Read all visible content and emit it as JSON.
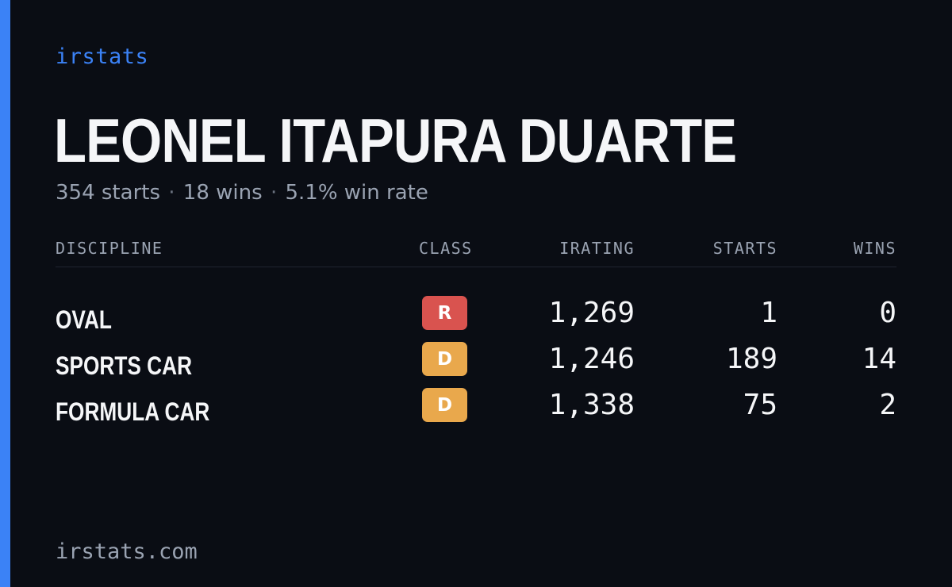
{
  "brand": "irstats",
  "driver": {
    "name": "LEONEL ITAPURA DUARTE",
    "starts_text": "354 starts",
    "wins_text": "18 wins",
    "win_rate_text": "5.1% win rate",
    "separator": "·"
  },
  "table": {
    "headers": {
      "discipline": "DISCIPLINE",
      "class": "CLASS",
      "irating": "IRATING",
      "starts": "STARTS",
      "wins": "WINS"
    },
    "rows": [
      {
        "discipline": "OVAL",
        "class": "R",
        "class_color": "#d9534f",
        "irating": "1,269",
        "starts": "1",
        "wins": "0"
      },
      {
        "discipline": "SPORTS CAR",
        "class": "D",
        "class_color": "#e9a84c",
        "irating": "1,246",
        "starts": "189",
        "wins": "14"
      },
      {
        "discipline": "FORMULA CAR",
        "class": "D",
        "class_color": "#e9a84c",
        "irating": "1,338",
        "starts": "75",
        "wins": "2"
      }
    ]
  },
  "footer": "irstats.com",
  "colors": {
    "background": "#0a0d14",
    "accent": "#3b82f6",
    "text": "#f5f6f8",
    "muted": "#9aa3b2"
  }
}
